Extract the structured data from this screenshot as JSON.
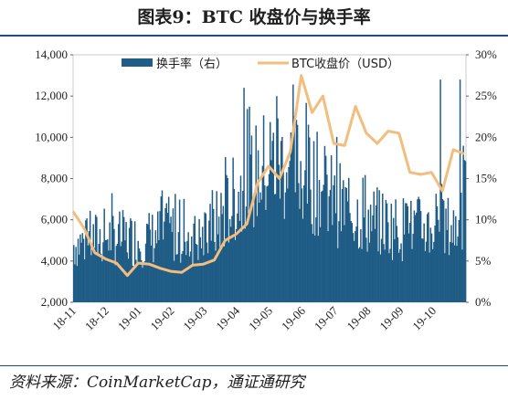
{
  "header": {
    "title": "图表9：BTC 收盘价与换手率"
  },
  "footer": {
    "source": "资料来源：CoinMarketCap，通证通研究"
  },
  "chart_data": {
    "type": "bar+line",
    "title": "图表9：BTC 收盘价与换手率",
    "x_categories": [
      "18-11",
      "18-12",
      "19-01",
      "19-02",
      "19-03",
      "19-04",
      "19-05",
      "19-06",
      "19-07",
      "19-08",
      "19-09",
      "19-10"
    ],
    "y_left": {
      "ticks": [
        "2,000",
        "4,000",
        "6,000",
        "8,000",
        "10,000",
        "12,000",
        "14,000"
      ],
      "range": [
        2000,
        14000
      ]
    },
    "y_right": {
      "ticks": [
        "0%",
        "5%",
        "10%",
        "15%",
        "20%",
        "25%",
        "30%"
      ],
      "range": [
        0,
        30
      ]
    },
    "legend": {
      "placement": "top-center",
      "items": [
        "换手率（右）",
        "BTC收盘价（USD）"
      ]
    },
    "series": [
      {
        "name": "换手率（右）",
        "axis": "right",
        "type": "bar",
        "color": "#1f5c86",
        "monthly_approx_percent": [
          {
            "month": "18-11",
            "level": 7
          },
          {
            "month": "18-12",
            "level": 8
          },
          {
            "month": "19-01",
            "level": 7.5
          },
          {
            "month": "19-02",
            "level": 8.5
          },
          {
            "month": "19-03",
            "level": 7.5
          },
          {
            "month": "19-04",
            "level": 13,
            "peak": 26
          },
          {
            "month": "19-05",
            "level": 17,
            "peak": 25
          },
          {
            "month": "19-06",
            "level": 16,
            "peak": 20
          },
          {
            "month": "19-07",
            "level": 12
          },
          {
            "month": "19-08",
            "level": 10
          },
          {
            "month": "19-09",
            "level": 9
          },
          {
            "month": "19-10",
            "level": 9,
            "peak": 27
          }
        ]
      },
      {
        "name": "BTC收盘价（USD）",
        "axis": "left",
        "type": "line",
        "color": "#f3bd7e",
        "points": [
          [
            "18-11 start",
            6400
          ],
          [
            "18-11 mid",
            5600
          ],
          [
            "18-11 mid-late",
            4400
          ],
          [
            "18-11 end",
            4100
          ],
          [
            "18-12 start",
            3900
          ],
          [
            "18-12 mid",
            3300
          ],
          [
            "18-12 end",
            3900
          ],
          [
            "19-01 start",
            3850
          ],
          [
            "19-01 mid",
            3650
          ],
          [
            "19-01 end",
            3500
          ],
          [
            "19-02 start",
            3450
          ],
          [
            "19-02 end",
            3800
          ],
          [
            "19-03 start",
            3850
          ],
          [
            "19-03 end",
            4050
          ],
          [
            "19-04 start",
            5000
          ],
          [
            "19-04 end",
            5300
          ],
          [
            "19-05 start",
            5800
          ],
          [
            "19-05 mid",
            7800
          ],
          [
            "19-05 end",
            8600
          ],
          [
            "19-06 start",
            8000
          ],
          [
            "19-06 mid",
            9300
          ],
          [
            "19-06 late",
            13000
          ],
          [
            "19-06 end",
            11200
          ],
          [
            "19-07 start",
            12000
          ],
          [
            "19-07 mid",
            9700
          ],
          [
            "19-07 end",
            9600
          ],
          [
            "19-08 start",
            11500
          ],
          [
            "19-08 mid",
            10200
          ],
          [
            "19-08 end",
            9700
          ],
          [
            "19-09 start",
            10300
          ],
          [
            "19-09 mid",
            10200
          ],
          [
            "19-09 late",
            8300
          ],
          [
            "19-09 end",
            8200
          ],
          [
            "19-10 start",
            8300
          ],
          [
            "19-10 mid",
            7400
          ],
          [
            "19-10 late",
            9400
          ],
          [
            "19-10 end",
            9200
          ]
        ]
      }
    ]
  }
}
